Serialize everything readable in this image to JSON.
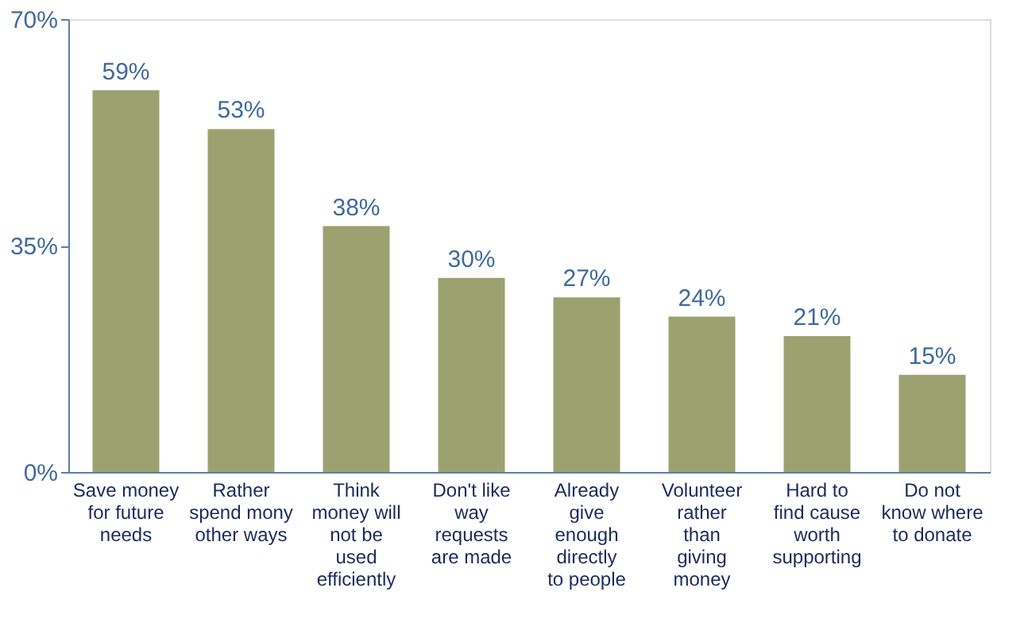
{
  "chart_data": {
    "type": "bar",
    "categories": [
      "Save money for future needs",
      "Rather spend mony other ways",
      "Think money will not be used efficiently",
      "Don't like way requests are made",
      "Already give enough directly to people",
      "Volunteer rather than giving money",
      "Hard to find cause worth supporting",
      "Do not know where to donate"
    ],
    "values": [
      59,
      53,
      38,
      30,
      27,
      24,
      21,
      15
    ],
    "value_labels": [
      "59%",
      "53%",
      "38%",
      "30%",
      "27%",
      "24%",
      "21%",
      "15%"
    ],
    "color": "#9ba270",
    "ylim": [
      0,
      70
    ],
    "yticks": [
      {
        "value": 0,
        "label": "0%"
      },
      {
        "value": 35,
        "label": "35%"
      },
      {
        "value": 70,
        "label": "70%"
      }
    ],
    "grid": false
  }
}
